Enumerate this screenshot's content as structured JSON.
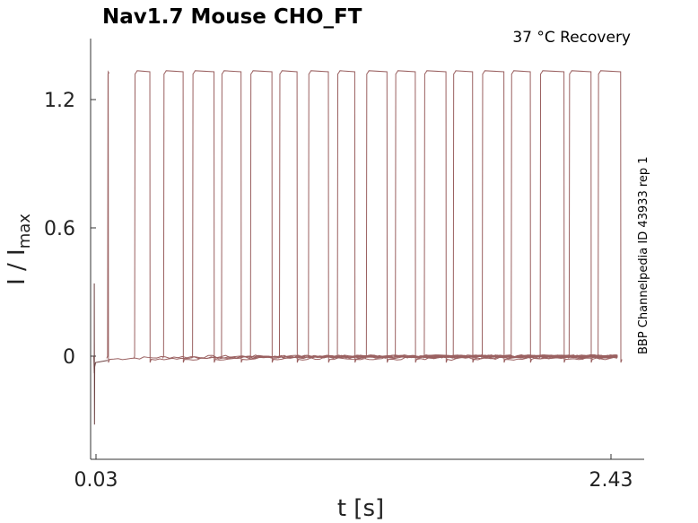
{
  "chart_data": {
    "type": "line",
    "title": "Nav1.7  Mouse  CHO_FT",
    "subtitle": "37 °C  Recovery",
    "side_note": "BBP Channelpedia ID 43933 rep 1",
    "xlabel": "t [s]",
    "ylabel_main": "I / I",
    "ylabel_sub": "max",
    "x_ticks": [
      {
        "value": 0.03,
        "label": "0.03"
      },
      {
        "value": 2.43,
        "label": "2.43"
      }
    ],
    "y_ticks": [
      {
        "value": 0,
        "label": "0"
      },
      {
        "value": 0.6,
        "label": "0.6"
      },
      {
        "value": 1.2,
        "label": "1.2"
      }
    ],
    "xlim": [
      0.0,
      2.46
    ],
    "ylim": [
      -0.48,
      1.46
    ],
    "grid": false,
    "line_color": "#9a6060",
    "baseline_value": 0.0,
    "plateau_value": 1.32,
    "initial_artifact": {
      "t": 0.022,
      "min": -0.32,
      "max": 0.34
    },
    "pulse_onsets": [
      0.084,
      0.21,
      0.345,
      0.48,
      0.615,
      0.75,
      0.885,
      1.02,
      1.155,
      1.29,
      1.425,
      1.56,
      1.695,
      1.83,
      1.965,
      2.1,
      2.235,
      2.37
    ],
    "pulse_ends": [
      0.087,
      0.281,
      0.436,
      0.58,
      0.706,
      0.85,
      0.967,
      1.113,
      1.236,
      1.386,
      1.518,
      1.661,
      1.785,
      1.931,
      2.054,
      2.211,
      2.337,
      2.475
    ]
  }
}
